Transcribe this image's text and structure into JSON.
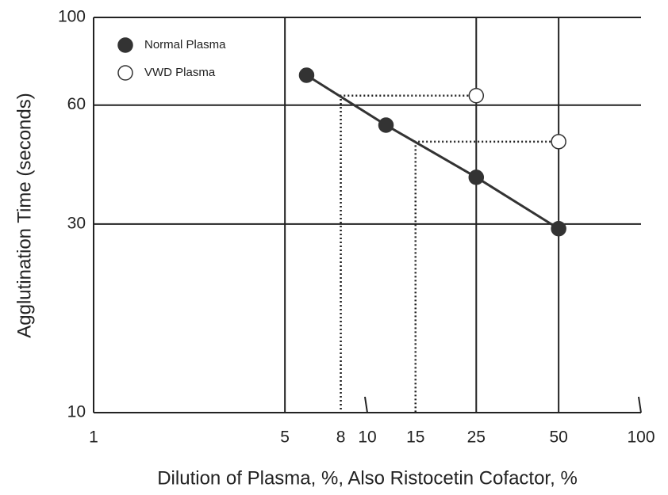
{
  "chart_data": {
    "type": "line",
    "xlabel": "Dilution of Plasma, %, Also Ristocetin Cofactor, %",
    "ylabel": "Agglutination Time (seconds)",
    "xscale": "log",
    "yscale": "log",
    "xlim": [
      1,
      100
    ],
    "ylim": [
      10,
      100
    ],
    "xticks": [
      1,
      5,
      8,
      10,
      15,
      25,
      50,
      100
    ],
    "yticks": [
      10,
      30,
      60,
      100
    ],
    "xgrid": [
      5,
      25,
      50
    ],
    "ygrid": [
      30,
      60,
      100
    ],
    "legend": "upper left",
    "series": [
      {
        "name": "Normal Plasma",
        "color": "#333333",
        "marker": "filled",
        "line": true,
        "x": [
          6,
          11.7,
          25,
          50
        ],
        "values": [
          71.4,
          53.4,
          39.4,
          29.2
        ]
      },
      {
        "name": "VWD Plasma",
        "color": "#333333",
        "marker": "open",
        "line": false,
        "x": [
          25,
          50
        ],
        "values": [
          63.4,
          48.5
        ],
        "readings": [
          8,
          15
        ]
      }
    ]
  }
}
